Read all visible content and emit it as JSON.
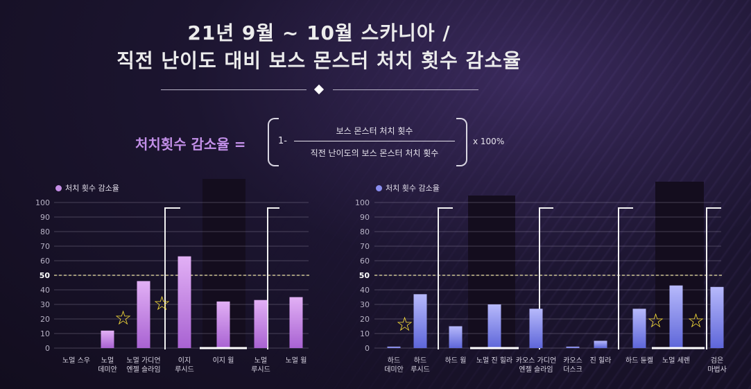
{
  "title": {
    "line1": "21년 9월 ~ 10월 스카니아 /",
    "line2": "직전 난이도 대비 보스 몬스터 처치 횟수 감소율"
  },
  "formula": {
    "label": "처치횟수 감소율 =",
    "one_minus": "1-",
    "numerator": "보스 몬스터 처치 횟수",
    "denominator": "직전 난이도의 보스 몬스터 처치 횟수",
    "multiplier": "x 100%"
  },
  "chart_data": [
    {
      "type": "bar",
      "legend": "처치 횟수 감소율",
      "color": "#c58ee6",
      "categories": [
        "노멀 스우",
        "노멀\n데미안",
        "노멀 가디언\n엔젤 슬라임",
        "이지\n루시드",
        "이지 윌",
        "노멀\n루시드",
        "노멀 윌"
      ],
      "values": [
        0,
        12,
        46,
        63,
        32,
        33,
        35
      ],
      "yticks": [
        0,
        10,
        20,
        30,
        40,
        50,
        60,
        70,
        80,
        90,
        100
      ],
      "ylim": [
        0,
        100
      ],
      "reference_line": 50,
      "grid": true
    },
    {
      "type": "bar",
      "legend": "처치 횟수 감소율",
      "color": "#8a8ef0",
      "categories": [
        "하드\n데미안",
        "하드\n루시드",
        "하드 윌",
        "노멀 진 힐라",
        "카오스 가디언\n엔젤 슬라임",
        "카오스\n더스크",
        "진 힐라",
        "하드 듄켈",
        "노멀 세렌",
        "검은\n마법사"
      ],
      "values": [
        1,
        37,
        15,
        30,
        27,
        1,
        5,
        27,
        43,
        42
      ],
      "yticks": [
        0,
        10,
        20,
        30,
        40,
        50,
        60,
        70,
        80,
        90,
        100
      ],
      "ylim": [
        0,
        100
      ],
      "reference_line": 50,
      "grid": true
    }
  ],
  "colors": {
    "accent_purple": "#c28fe8",
    "accent_blue": "#8a8ef0",
    "star": "#ffe43a"
  },
  "annotations": {
    "star_icon": "star-icon"
  }
}
